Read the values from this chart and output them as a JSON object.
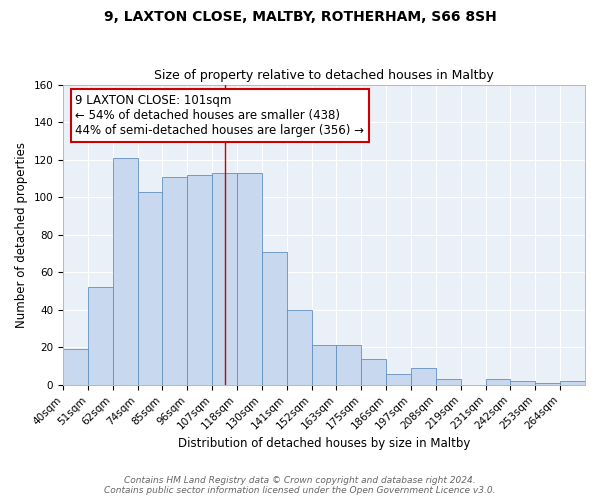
{
  "title": "9, LAXTON CLOSE, MALTBY, ROTHERHAM, S66 8SH",
  "subtitle": "Size of property relative to detached houses in Maltby",
  "xlabel": "Distribution of detached houses by size in Maltby",
  "ylabel": "Number of detached properties",
  "bar_labels": [
    "40sqm",
    "51sqm",
    "62sqm",
    "74sqm",
    "85sqm",
    "96sqm",
    "107sqm",
    "118sqm",
    "130sqm",
    "141sqm",
    "152sqm",
    "163sqm",
    "175sqm",
    "186sqm",
    "197sqm",
    "208sqm",
    "219sqm",
    "231sqm",
    "242sqm",
    "253sqm",
    "264sqm"
  ],
  "bar_values": [
    19,
    52,
    121,
    103,
    111,
    112,
    113,
    113,
    71,
    40,
    21,
    21,
    14,
    6,
    9,
    3,
    0,
    3,
    2,
    1,
    2
  ],
  "bar_color": "#c8d8ee",
  "bar_edge_color": "#6090c0",
  "ylim": [
    0,
    160
  ],
  "yticks": [
    0,
    20,
    40,
    60,
    80,
    100,
    120,
    140,
    160
  ],
  "vline_x": 6.5,
  "annotation_title": "9 LAXTON CLOSE: 101sqm",
  "annotation_line1": "← 54% of detached houses are smaller (438)",
  "annotation_line2": "44% of semi-detached houses are larger (356) →",
  "annotation_box_color": "#ffffff",
  "annotation_border_color": "#cc0000",
  "vline_color": "#cc0000",
  "footer1": "Contains HM Land Registry data © Crown copyright and database right 2024.",
  "footer2": "Contains public sector information licensed under the Open Government Licence v3.0.",
  "title_fontsize": 10,
  "subtitle_fontsize": 9,
  "axis_label_fontsize": 8.5,
  "tick_fontsize": 7.5,
  "annotation_fontsize": 8.5,
  "footer_fontsize": 6.5,
  "bg_color": "#eaf0f8",
  "grid_color": "#ffffff"
}
